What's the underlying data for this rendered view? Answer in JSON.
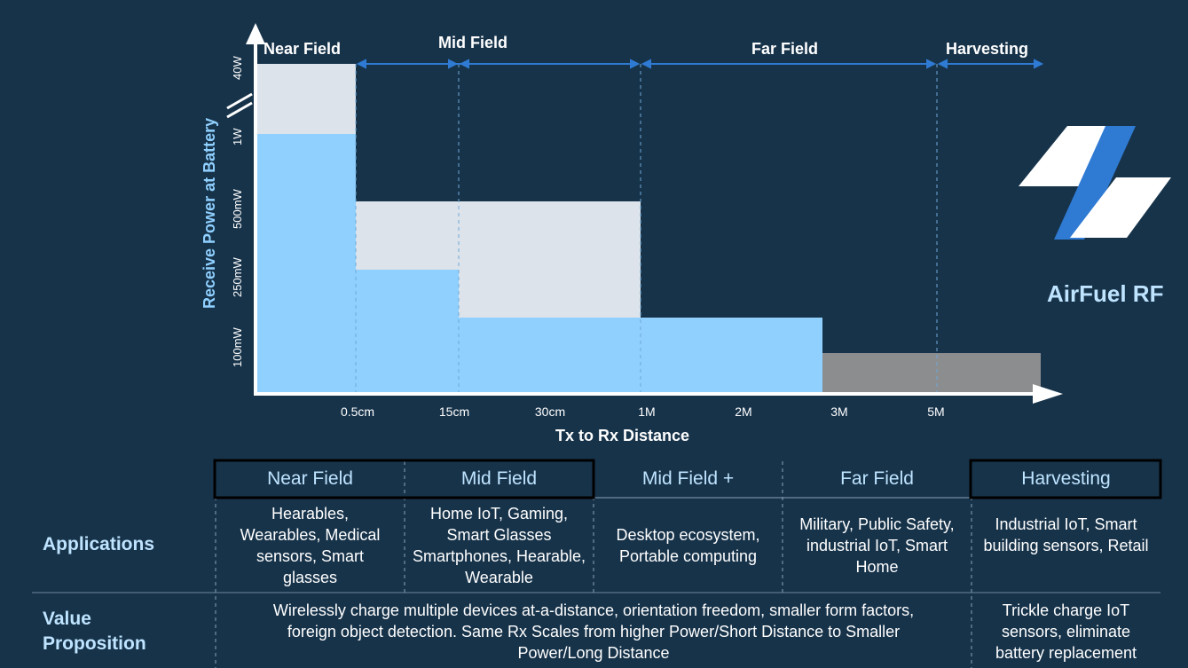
{
  "diagram": {
    "zones": [
      "Near Field",
      "Mid Field",
      "Far Field",
      "Harvesting"
    ],
    "x_axis": {
      "title": "Tx to Rx Distance",
      "ticks": [
        "0.5cm",
        "15cm",
        "30cm",
        "1M",
        "2M",
        "3M",
        "5M"
      ]
    },
    "y_axis": {
      "title": "Receive Power at Battery",
      "ticks": [
        "40W",
        "1W",
        "500mW",
        "250mW",
        "100mW"
      ]
    }
  },
  "brand": {
    "name": "AirFuel RF"
  },
  "table": {
    "columns": [
      "Near Field",
      "Mid Field",
      "Mid Field +",
      "Far Field",
      "Harvesting"
    ],
    "rows": [
      {
        "label": "Applications",
        "cells": [
          "Hearables, Wearables, Medical sensors, Smart glasses",
          "Home IoT, Gaming, Smart Glasses Smartphones, Hearable, Wearable",
          "Desktop ecosystem, Portable computing",
          "Military, Public Safety, industrial IoT, Smart Home",
          "Industrial IoT, Smart building sensors, Retail"
        ]
      },
      {
        "label": "Value Proposition",
        "cells": [
          "Wirelessly charge multiple devices at-a-distance, orientation freedom, smaller form factors, foreign object detection. Same Rx Scales from higher Power/Short Distance to Smaller Power/Long Distance",
          "Trickle charge IoT sensors, eliminate battery replacement"
        ]
      }
    ]
  },
  "colors": {
    "background": "#17334a",
    "bar_blue": "#8fd0ff",
    "bar_light": "#dde3ea",
    "bar_gray": "#8b8d8f",
    "accent_blue": "#2f7bd4"
  }
}
